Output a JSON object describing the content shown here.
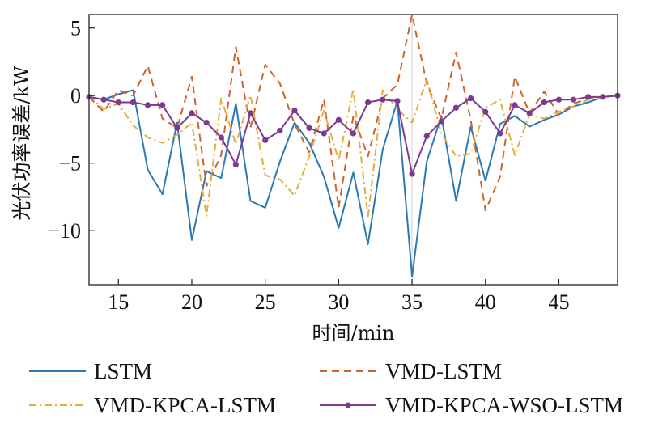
{
  "chart_data": {
    "type": "line",
    "title": "",
    "xlabel": "时间/min",
    "ylabel": "光伏功率误差/kW",
    "xlim": [
      13,
      49
    ],
    "ylim": [
      -14,
      6
    ],
    "x_ticks": [
      15,
      20,
      25,
      30,
      35,
      40,
      45
    ],
    "y_ticks": [
      5,
      0,
      -5,
      -10
    ],
    "y_tick_labels": [
      "5",
      "0",
      "−5",
      "−10"
    ],
    "grid": false,
    "legend_position": "bottom",
    "x": [
      13,
      14,
      15,
      16,
      17,
      18,
      19,
      20,
      21,
      22,
      23,
      24,
      25,
      26,
      27,
      28,
      29,
      30,
      31,
      32,
      33,
      34,
      35,
      36,
      37,
      38,
      39,
      40,
      41,
      42,
      43,
      44,
      45,
      46,
      47,
      48,
      49
    ],
    "series": [
      {
        "name": "LSTM",
        "color": "#2a78b4",
        "style": "solid",
        "markers": false,
        "values": [
          -0.1,
          -0.3,
          0.1,
          0.4,
          -5.5,
          -7.3,
          -2.0,
          -10.7,
          -5.6,
          -6.1,
          -0.6,
          -7.8,
          -8.3,
          -4.9,
          -2.0,
          -3.5,
          -6.0,
          -9.8,
          -5.7,
          -11.0,
          -4.0,
          -0.4,
          -13.4,
          -4.9,
          -1.5,
          -7.8,
          -2.3,
          -6.3,
          -2.1,
          -1.5,
          -2.3,
          -1.8,
          -1.4,
          -0.8,
          -0.5,
          -0.1,
          0.0
        ]
      },
      {
        "name": "VMD-LSTM",
        "color": "#d0622c",
        "style": "dashed",
        "markers": false,
        "values": [
          -0.1,
          -1.2,
          0.4,
          0.0,
          2.2,
          -1.7,
          -2.4,
          1.4,
          -6.7,
          -4.4,
          3.6,
          -2.4,
          2.3,
          0.9,
          -2.1,
          -4.2,
          -0.3,
          -8.3,
          -1.5,
          -4.5,
          -0.2,
          0.8,
          6.0,
          0.9,
          -1.7,
          3.2,
          -1.8,
          -8.5,
          -6.0,
          1.4,
          -1.3,
          0.3,
          -1.4,
          -0.6,
          -0.2,
          -0.1,
          0.0
        ]
      },
      {
        "name": "VMD-KPCA-LSTM",
        "color": "#e0ae3c",
        "style": "dashdot",
        "markers": false,
        "values": [
          0.0,
          -1.0,
          -0.6,
          -2.2,
          -3.1,
          -3.5,
          -2.9,
          -2.0,
          -8.9,
          -0.2,
          -3.6,
          0.0,
          -5.9,
          -6.2,
          -7.4,
          -4.5,
          -1.1,
          -4.8,
          0.5,
          -9.0,
          0.4,
          -1.0,
          -2.0,
          1.2,
          -2.8,
          -4.5,
          -4.3,
          -0.9,
          -0.3,
          -4.4,
          -1.4,
          -1.7,
          -1.2,
          -0.8,
          -0.3,
          -0.1,
          0.0
        ]
      },
      {
        "name": "VMD-KPCA-WSO-LSTM",
        "color": "#7b3a8f",
        "style": "solid",
        "markers": true,
        "values": [
          -0.1,
          -0.3,
          -0.5,
          -0.5,
          -0.7,
          -0.7,
          -2.4,
          -1.3,
          -2.0,
          -3.1,
          -5.1,
          -1.3,
          -3.3,
          -2.6,
          -1.1,
          -2.4,
          -2.8,
          -1.8,
          -2.8,
          -0.5,
          -0.3,
          -0.4,
          -5.8,
          -3.0,
          -1.9,
          -0.9,
          -0.2,
          -1.2,
          -2.8,
          -0.7,
          -1.3,
          -0.5,
          -0.3,
          -0.3,
          -0.1,
          -0.1,
          0.0
        ]
      }
    ]
  }
}
